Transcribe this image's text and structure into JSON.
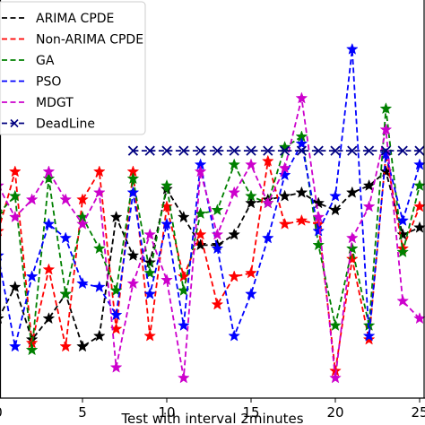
{
  "chart_data": {
    "type": "line",
    "xlabel": "Test with interval 2minutes",
    "ylabel": "",
    "xlim": [
      0,
      25.5
    ],
    "ylim": [
      0,
      100
    ],
    "xticks": [
      0,
      5,
      10,
      15,
      20,
      25
    ],
    "xtick_labels": [
      "0",
      "5",
      "10",
      "15",
      "20",
      "25"
    ],
    "grid": false,
    "legend_position": "upper-left",
    "series": [
      {
        "name": "ARIMA CPDE",
        "color": "#000000",
        "marker": "star",
        "x": [
          0,
          1,
          2,
          3,
          4,
          5,
          6,
          7,
          8,
          9,
          10,
          11,
          12,
          13,
          14,
          15,
          16,
          17,
          18,
          19,
          20,
          21,
          22,
          23,
          24,
          25
        ],
        "y": [
          33,
          42,
          27,
          33,
          40,
          25,
          28,
          62,
          51,
          49,
          70,
          62,
          54,
          54,
          57,
          66,
          67,
          68,
          69,
          66,
          64,
          69,
          71,
          75,
          57,
          59
        ]
      },
      {
        "name": "Non-ARIMA CPDE",
        "color": "#ff0000",
        "marker": "star",
        "x": [
          0,
          1,
          2,
          3,
          4,
          5,
          6,
          7,
          8,
          9,
          10,
          11,
          12,
          13,
          14,
          15,
          16,
          17,
          18,
          19,
          20,
          21,
          22,
          23,
          24,
          25
        ],
        "y": [
          58,
          75,
          26,
          47,
          25,
          67,
          75,
          30,
          75,
          28,
          65,
          45,
          57,
          37,
          45,
          46,
          78,
          60,
          61,
          60,
          18,
          50,
          27,
          80,
          53,
          65
        ]
      },
      {
        "name": "GA",
        "color": "#008000",
        "marker": "star",
        "x": [
          0,
          1,
          2,
          3,
          4,
          5,
          6,
          7,
          8,
          9,
          10,
          11,
          12,
          13,
          14,
          15,
          16,
          17,
          18,
          19,
          20,
          21,
          22,
          23,
          24,
          25
        ],
        "y": [
          63,
          68,
          24,
          73,
          40,
          62,
          53,
          41,
          73,
          46,
          71,
          41,
          63,
          64,
          77,
          68,
          66,
          82,
          85,
          54,
          31,
          53,
          31,
          93,
          52,
          71
        ]
      },
      {
        "name": "PSO",
        "color": "#0000ff",
        "marker": "star",
        "x": [
          0,
          1,
          2,
          3,
          4,
          5,
          6,
          7,
          8,
          9,
          10,
          11,
          12,
          13,
          14,
          15,
          16,
          17,
          18,
          19,
          20,
          21,
          22,
          23,
          24,
          25
        ],
        "y": [
          51,
          25,
          45,
          60,
          56,
          43,
          42,
          34,
          69,
          40,
          60,
          31,
          77,
          53,
          28,
          40,
          56,
          74,
          83,
          58,
          68,
          110,
          28,
          80,
          61,
          77
        ]
      },
      {
        "name": "MDGT",
        "color": "#cc00cc",
        "marker": "star",
        "x": [
          0,
          1,
          2,
          3,
          4,
          5,
          6,
          7,
          8,
          9,
          10,
          11,
          12,
          13,
          14,
          15,
          16,
          17,
          18,
          19,
          20,
          21,
          22,
          23,
          24,
          25
        ],
        "y": [
          71,
          62,
          67,
          75,
          67,
          60,
          69,
          19,
          43,
          57,
          44,
          16,
          75,
          57,
          69,
          77,
          66,
          76,
          96,
          62,
          16,
          56,
          65,
          87,
          38,
          33
        ]
      },
      {
        "name": "DeadLine",
        "color": "#000080",
        "marker": "x",
        "x": [
          8,
          9,
          10,
          11,
          12,
          13,
          14,
          15,
          16,
          17,
          18,
          19,
          20,
          21,
          22,
          23,
          24,
          25
        ],
        "y": [
          81,
          81,
          81,
          81,
          81,
          81,
          81,
          81,
          81,
          81,
          81,
          81,
          81,
          81,
          81,
          81,
          81,
          81
        ]
      }
    ]
  }
}
